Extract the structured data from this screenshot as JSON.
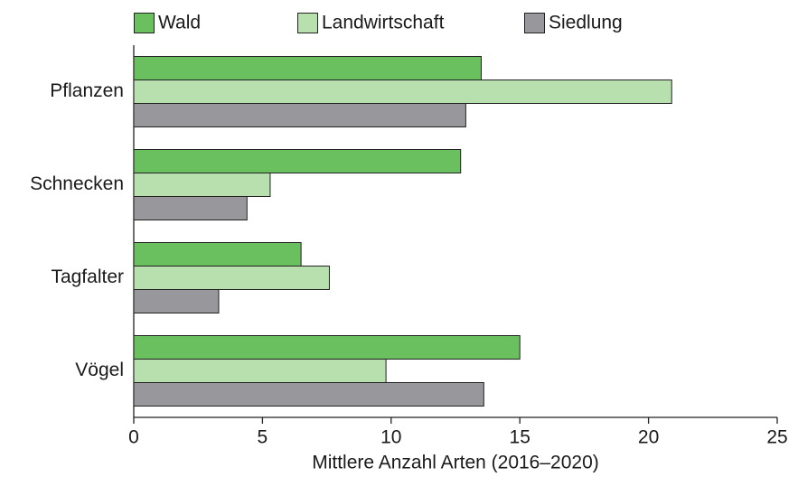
{
  "chart_data": {
    "type": "bar",
    "orientation": "horizontal",
    "x_label": "Mittlere Anzahl Arten (2016–2020)",
    "categories": [
      "Pflanzen",
      "Schnecken",
      "Tagfalter",
      "Vögel"
    ],
    "series": [
      {
        "name": "Wald",
        "color": "#6abf5e",
        "values": [
          13.5,
          12.7,
          6.5,
          15.0
        ]
      },
      {
        "name": "Landwirtschaft",
        "color": "#b8dfae",
        "values": [
          20.9,
          5.3,
          7.6,
          9.8
        ]
      },
      {
        "name": "Siedlung",
        "color": "#98989c",
        "values": [
          12.9,
          4.4,
          3.3,
          13.6
        ]
      }
    ],
    "xlim": [
      0,
      25
    ],
    "xticks": [
      0,
      5,
      10,
      15,
      20,
      25
    ],
    "legend": "top"
  }
}
